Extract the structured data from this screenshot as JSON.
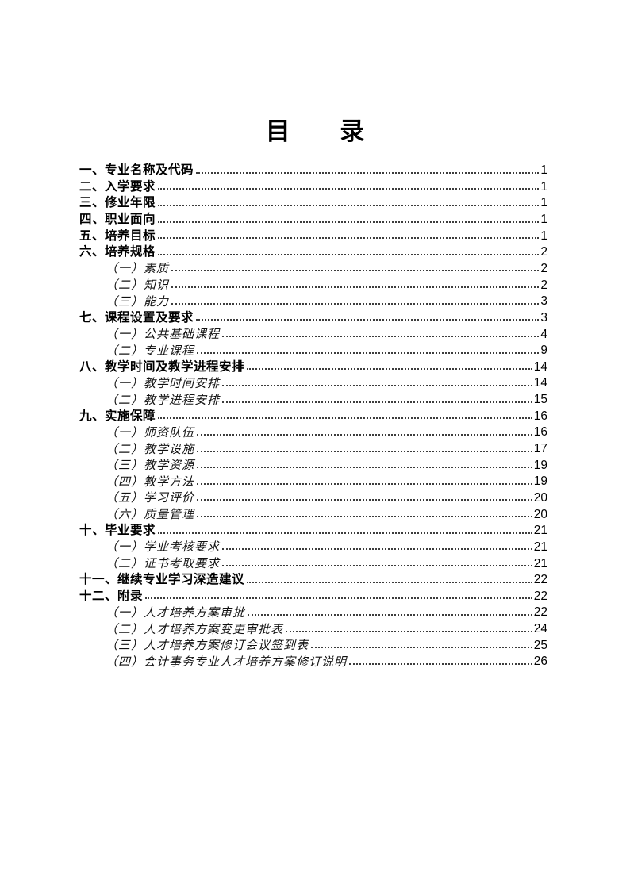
{
  "page": {
    "title": "目 录"
  },
  "colors": {
    "text": "#000000",
    "dot_leader": "#3c3c3c",
    "background": "#ffffff"
  },
  "toc": {
    "entries": [
      {
        "label": "一、专业名称及代码",
        "page": "1",
        "level": 1
      },
      {
        "label": "二、入学要求",
        "page": "1",
        "level": 1
      },
      {
        "label": "三、修业年限",
        "page": "1",
        "level": 1
      },
      {
        "label": "四、职业面向",
        "page": "1",
        "level": 1
      },
      {
        "label": "五、培养目标",
        "page": "1",
        "level": 1
      },
      {
        "label": "六、培养规格",
        "page": "2",
        "level": 1
      },
      {
        "label": "（一）素质",
        "page": "2",
        "level": 2
      },
      {
        "label": "（二）知识",
        "page": "2",
        "level": 2
      },
      {
        "label": "（三）能力",
        "page": "3",
        "level": 2
      },
      {
        "label": "七、课程设置及要求",
        "page": "3",
        "level": 1
      },
      {
        "label": "（一）公共基础课程",
        "page": "4",
        "level": 2
      },
      {
        "label": "（二）专业课程",
        "page": "9",
        "level": 2
      },
      {
        "label": "八、教学时间及教学进程安排",
        "page": "14",
        "level": 1
      },
      {
        "label": "（一）教学时间安排",
        "page": "14",
        "level": 2
      },
      {
        "label": "（二）教学进程安排",
        "page": "15",
        "level": 2
      },
      {
        "label": "九、实施保障",
        "page": "16",
        "level": 1
      },
      {
        "label": "（一）师资队伍",
        "page": "16",
        "level": 2
      },
      {
        "label": "（二）教学设施",
        "page": "17",
        "level": 2
      },
      {
        "label": "（三）教学资源",
        "page": "19",
        "level": 2
      },
      {
        "label": "（四）教学方法",
        "page": "19",
        "level": 2
      },
      {
        "label": "（五）学习评价",
        "page": "20",
        "level": 2
      },
      {
        "label": "（六）质量管理",
        "page": "20",
        "level": 2
      },
      {
        "label": "十、毕业要求",
        "page": "21",
        "level": 1
      },
      {
        "label": "（一）学业考核要求",
        "page": "21",
        "level": 2
      },
      {
        "label": "（二）证书考取要求",
        "page": "21",
        "level": 2
      },
      {
        "label": "十一、继续专业学习深造建议",
        "page": "22",
        "level": 1
      },
      {
        "label": "十二、附录",
        "page": "22",
        "level": 1
      },
      {
        "label": "（一）人才培养方案审批",
        "page": "22",
        "level": 2
      },
      {
        "label": "（二）人才培养方案变更审批表",
        "page": "24",
        "level": 2
      },
      {
        "label": "（三）人才培养方案修订会议签到表",
        "page": "25",
        "level": 2
      },
      {
        "label": "（四）会计事务专业人才培养方案修订说明",
        "page": "26",
        "level": 2
      }
    ]
  }
}
